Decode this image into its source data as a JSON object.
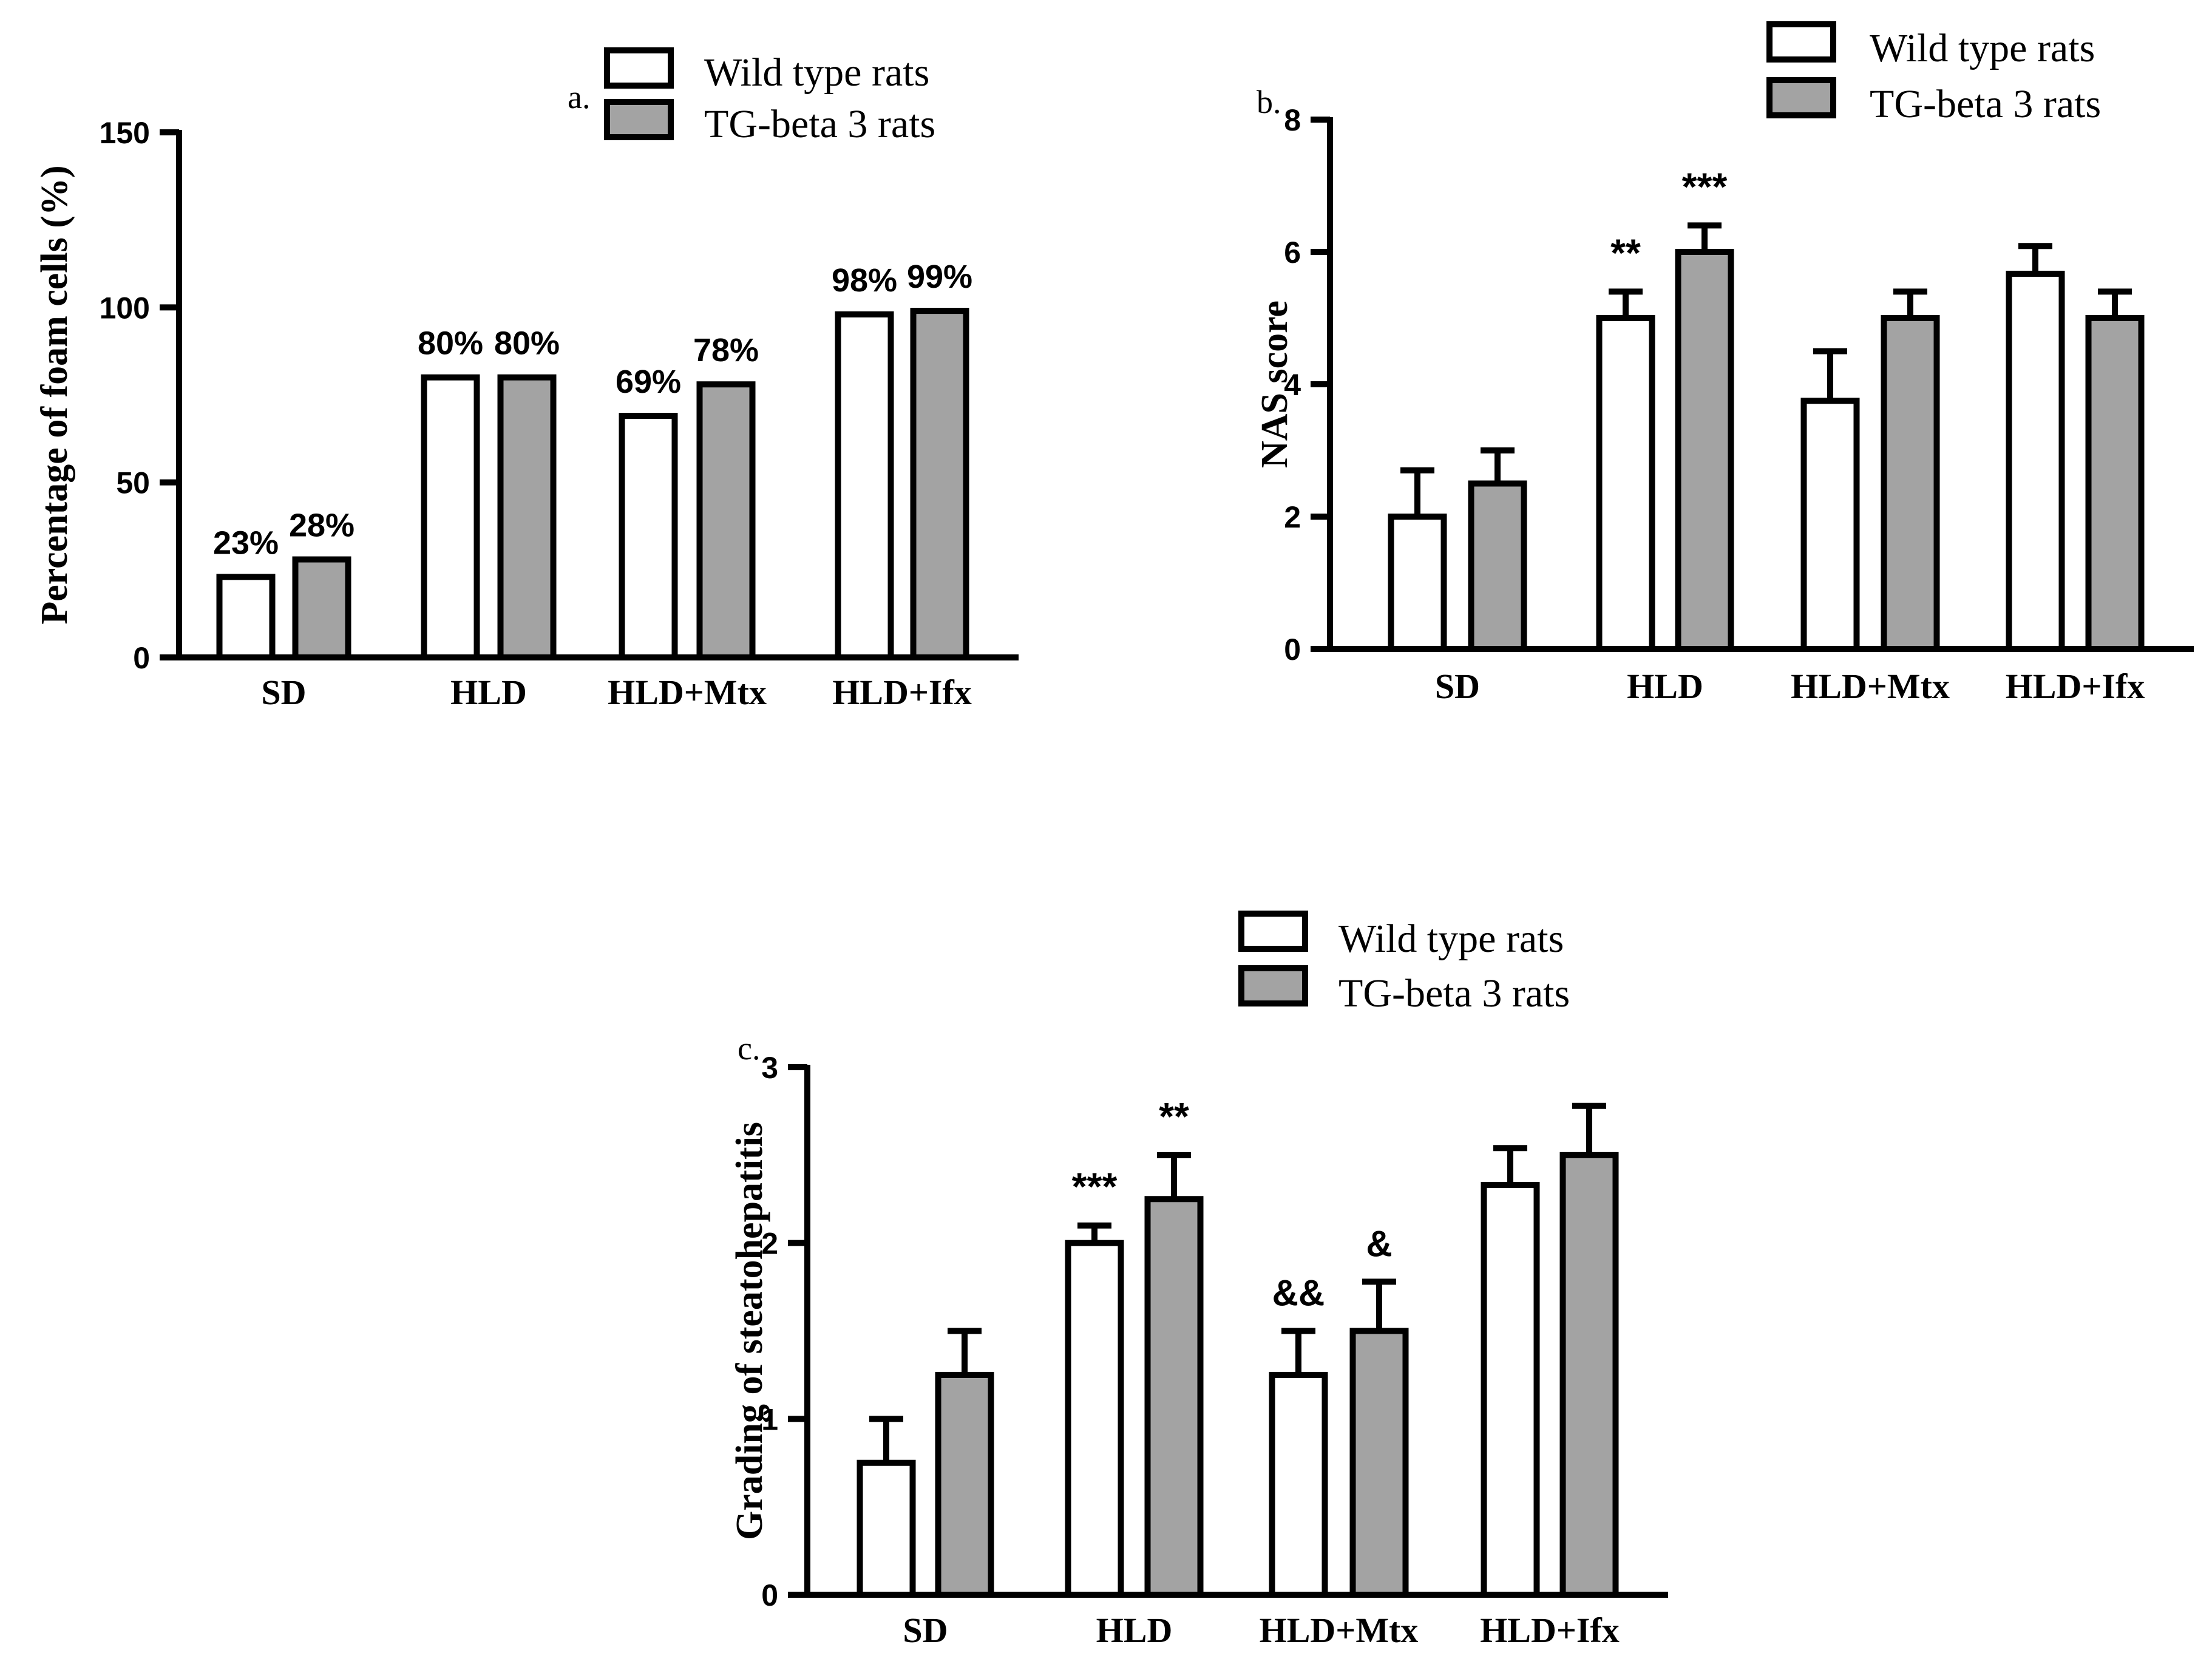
{
  "colors": {
    "wild_type_fill": "#ffffff",
    "tg_beta3_fill": "#a3a3a3",
    "stroke": "#000000"
  },
  "chart_data": [
    {
      "panel": "a.",
      "type": "bar",
      "ylabel": "Percentage of foam cells (%)",
      "categories": [
        "SD",
        "HLD",
        "HLD+Mtx",
        "HLD+Ifx"
      ],
      "ylim": [
        0,
        150
      ],
      "yticks": [
        0,
        50,
        100,
        150
      ],
      "legend_position": "top",
      "series": [
        {
          "name": "Wild type rats",
          "values": [
            23,
            80,
            69,
            98
          ],
          "labels": [
            "23%",
            "80%",
            "69%",
            "98%"
          ],
          "errors": [
            0,
            0,
            0,
            0
          ],
          "annotations": [
            "",
            "",
            "",
            ""
          ]
        },
        {
          "name": "TG-beta 3 rats",
          "values": [
            28,
            80,
            78,
            99
          ],
          "labels": [
            "28%",
            "80%",
            "78%",
            "99%"
          ],
          "errors": [
            0,
            0,
            0,
            0
          ],
          "annotations": [
            "",
            "",
            "",
            ""
          ]
        }
      ]
    },
    {
      "panel": "b.",
      "type": "bar",
      "ylabel": "NAS score",
      "categories": [
        "SD",
        "HLD",
        "HLD+Mtx",
        "HLD+Ifx"
      ],
      "ylim": [
        0,
        8
      ],
      "yticks": [
        0,
        2,
        4,
        6,
        8
      ],
      "legend_position": "top-right",
      "series": [
        {
          "name": "Wild type rats",
          "values": [
            2,
            5,
            3.75,
            5.67
          ],
          "labels": [
            "",
            "",
            "",
            ""
          ],
          "errors": [
            0.7,
            0.4,
            0.75,
            0.42
          ],
          "annotations": [
            "",
            "**",
            "",
            ""
          ]
        },
        {
          "name": "TG-beta 3 rats",
          "values": [
            2.5,
            6,
            5,
            5
          ],
          "labels": [
            "",
            "",
            "",
            ""
          ],
          "errors": [
            0.5,
            0.4,
            0.4,
            0.4
          ],
          "annotations": [
            "",
            "***",
            "",
            ""
          ]
        }
      ]
    },
    {
      "panel": "c.",
      "type": "bar",
      "ylabel": "Grading of steatohepatitis",
      "categories": [
        "SD",
        "HLD",
        "HLD+Mtx",
        "HLD+Ifx"
      ],
      "ylim": [
        0,
        3
      ],
      "yticks": [
        0,
        1,
        2,
        3
      ],
      "legend_position": "top",
      "series": [
        {
          "name": "Wild type rats",
          "values": [
            0.75,
            2,
            1.25,
            2.33
          ],
          "labels": [
            "",
            "",
            "",
            ""
          ],
          "errors": [
            0.25,
            0.1,
            0.25,
            0.21
          ],
          "annotations": [
            "",
            "***",
            "&&",
            ""
          ]
        },
        {
          "name": "TG-beta 3 rats",
          "values": [
            1.25,
            2.25,
            1.5,
            2.5
          ],
          "labels": [
            "",
            "",
            "",
            ""
          ],
          "errors": [
            0.25,
            0.25,
            0.28,
            0.28
          ],
          "annotations": [
            "",
            "**",
            "&",
            ""
          ]
        }
      ]
    }
  ]
}
